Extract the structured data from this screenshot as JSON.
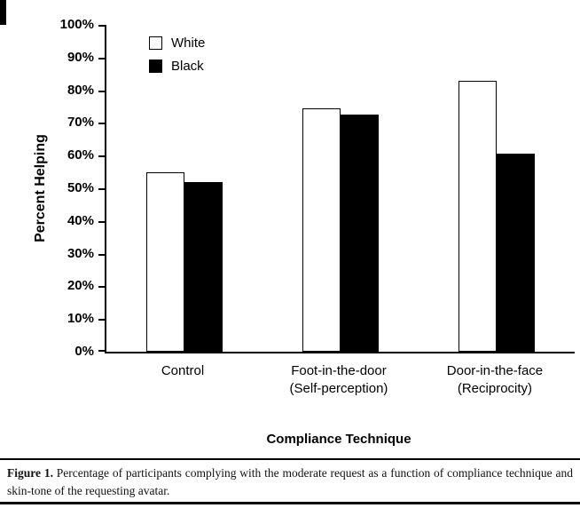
{
  "figure": {
    "caption_label": "Figure 1.",
    "caption_text": " Percentage of participants complying with the moderate request as a function of compliance technique and skin-tone of the requesting avatar."
  },
  "chart_data": {
    "type": "bar",
    "title": "",
    "categories": [
      "Control",
      "Foot-in-the-door (Self-perception)",
      "Door-in-the-face (Reciprocity)"
    ],
    "categories_lines": [
      [
        "Control"
      ],
      [
        "Foot-in-the-door",
        "(Self-perception)"
      ],
      [
        "Door-in-the-face",
        "(Reciprocity)"
      ]
    ],
    "series": [
      {
        "name": "White",
        "color": "#ffffff",
        "values": [
          55,
          74.5,
          83
        ]
      },
      {
        "name": "Black",
        "color": "#000000",
        "values": [
          52,
          72.5,
          60.5
        ]
      }
    ],
    "xlabel": "Compliance Technique",
    "ylabel": "Percent Helping",
    "ylim": [
      0,
      100
    ],
    "ytick_step": 10,
    "ytick_labels": [
      "0%",
      "10%",
      "20%",
      "30%",
      "40%",
      "50%",
      "60%",
      "70%",
      "80%",
      "90%",
      "100%"
    ],
    "legend_position": "top-left-inside",
    "grid": false,
    "axis_color": "#000000"
  }
}
